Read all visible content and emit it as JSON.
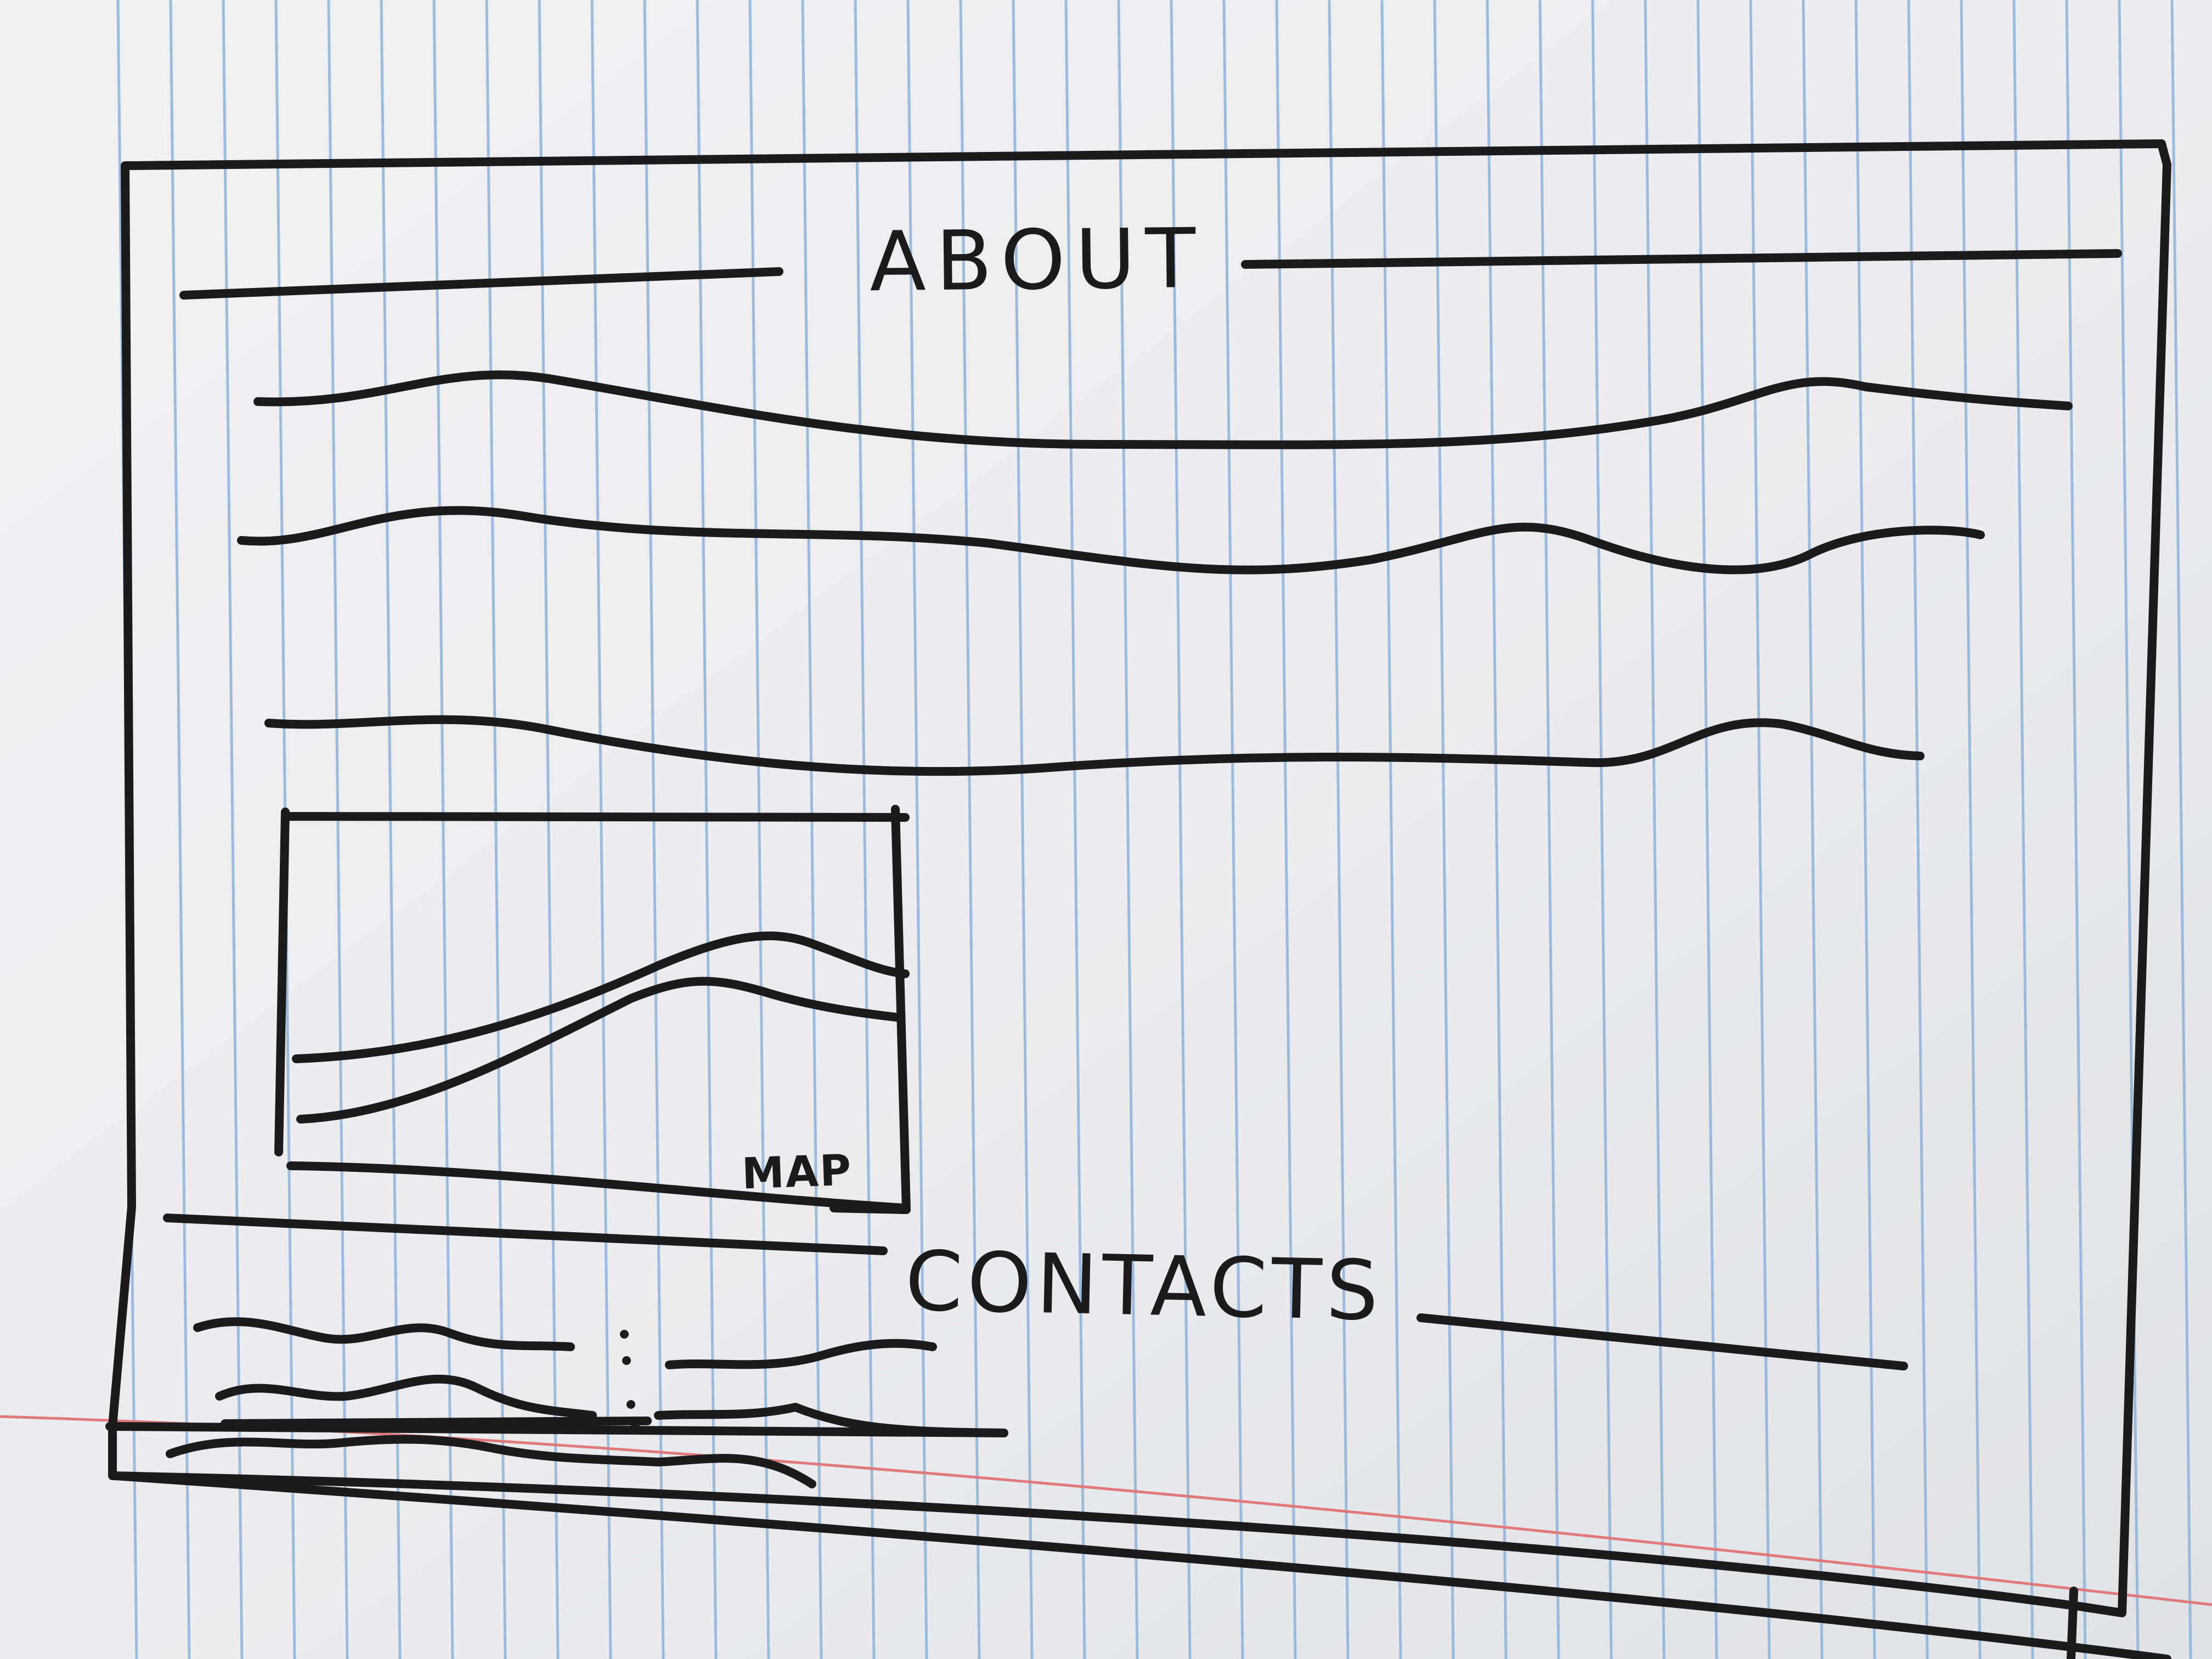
{
  "sketch": {
    "about_heading": "ABOUT",
    "map_label": "MAP",
    "contacts_heading": "CONTACTS"
  },
  "colors": {
    "paper": "#eef0f2",
    "rule_blue": "#8fb3d9",
    "margin_red": "#e07a7a",
    "ink": "#1b1b1d"
  }
}
